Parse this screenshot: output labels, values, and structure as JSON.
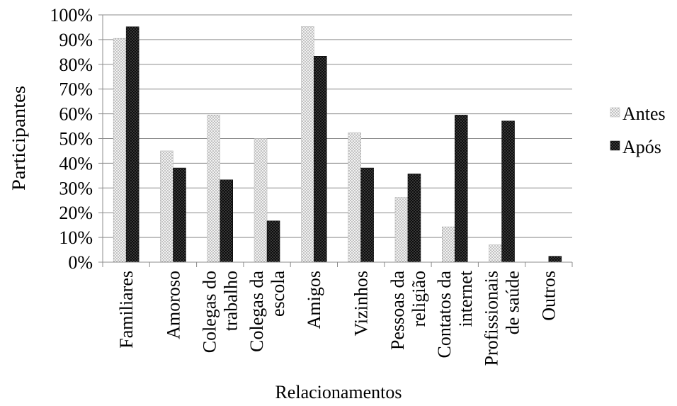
{
  "chart_data": {
    "type": "bar",
    "categories": [
      [
        "Familiares"
      ],
      [
        "Amoroso"
      ],
      [
        "Colegas do",
        "trabalho"
      ],
      [
        "Colegas da",
        "escola"
      ],
      [
        "Amigos"
      ],
      [
        "Vizinhos"
      ],
      [
        "Pessoas da",
        "religião"
      ],
      [
        "Contatos da",
        "internet"
      ],
      [
        "Profissionais",
        "de saúde"
      ],
      [
        "Outros"
      ]
    ],
    "series": [
      {
        "name": "Antes",
        "values": [
          0.905,
          0.45,
          0.595,
          0.5,
          0.953,
          0.524,
          0.262,
          0.143,
          0.071,
          0.0
        ],
        "color": "#e8e8e8",
        "pattern": "light-dotted"
      },
      {
        "name": "Após",
        "values": [
          0.952,
          0.381,
          0.333,
          0.167,
          0.833,
          0.381,
          0.357,
          0.595,
          0.571,
          0.024
        ],
        "color": "#1a1a1a",
        "pattern": "dark-dotted"
      }
    ],
    "xlabel": "Relacionamentos",
    "ylabel": "Participantes",
    "ylim": [
      0,
      1
    ],
    "yticks": [
      "0%",
      "10%",
      "20%",
      "30%",
      "40%",
      "50%",
      "60%",
      "70%",
      "80%",
      "90%",
      "100%"
    ],
    "grid": true,
    "legend_position": "right"
  }
}
